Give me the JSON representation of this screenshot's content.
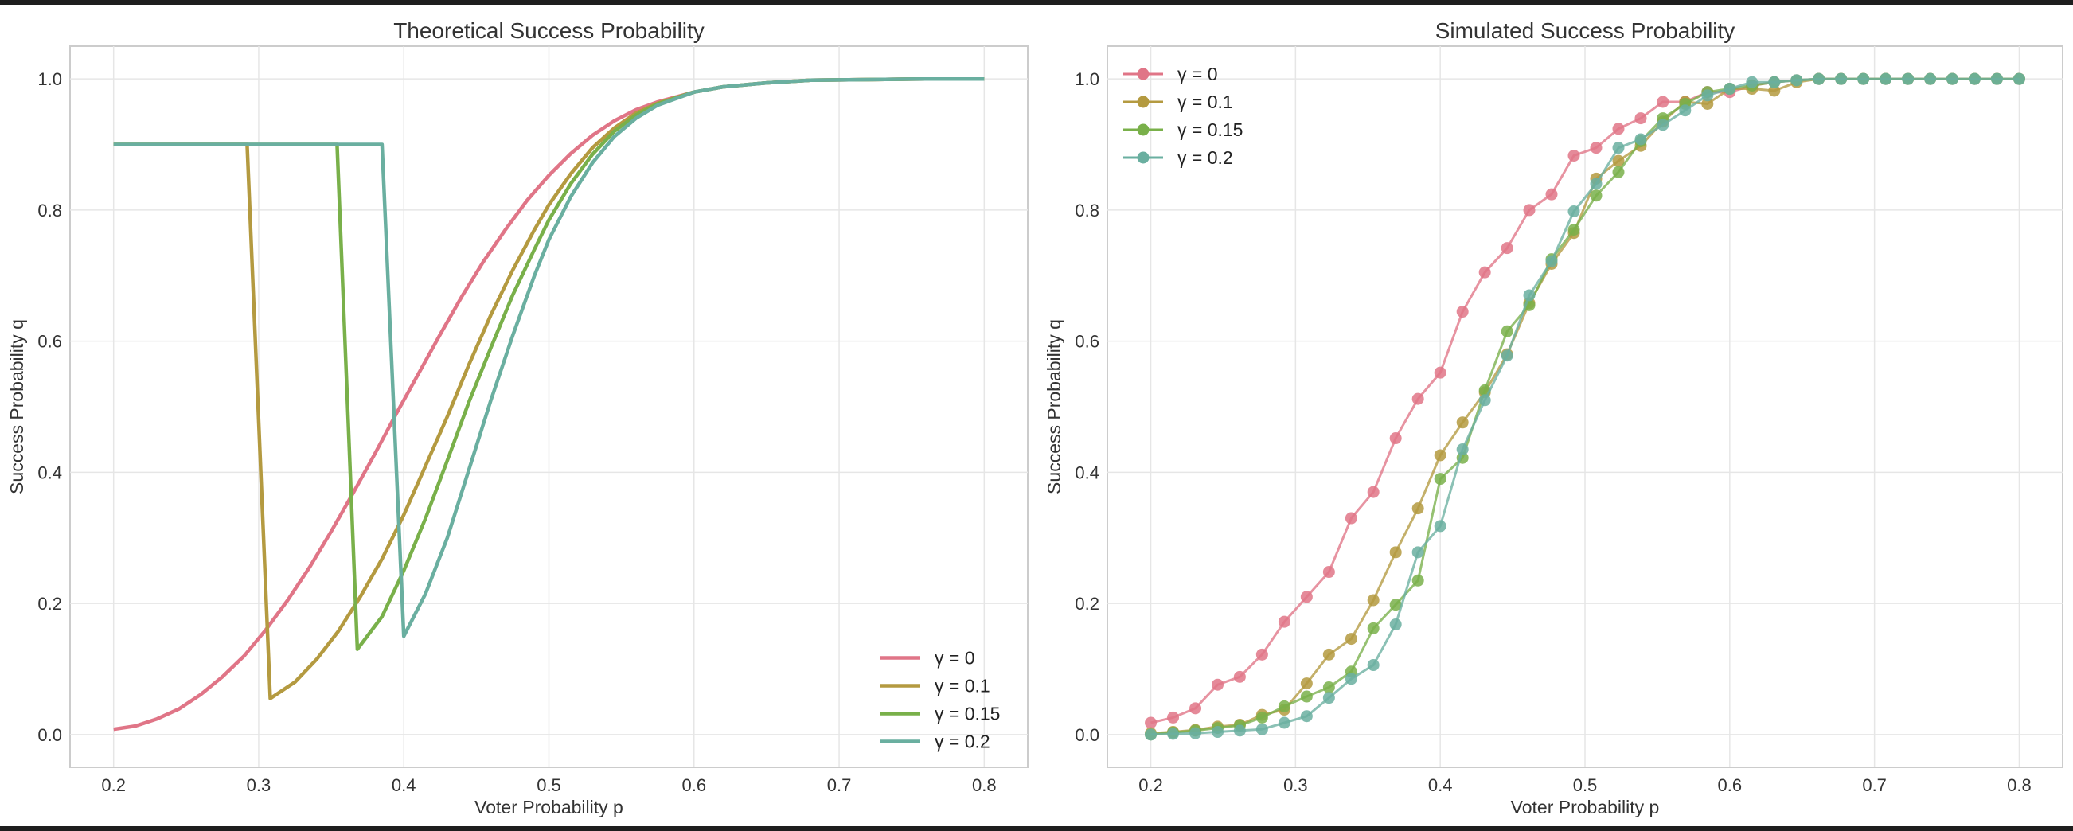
{
  "chart_data": [
    {
      "type": "line",
      "title": "Theoretical Success Probability",
      "xlabel": "Voter Probability p",
      "ylabel": "Success Probability q",
      "xlim": [
        0.17,
        0.83
      ],
      "ylim": [
        -0.05,
        1.05
      ],
      "xticks": [
        "0.2",
        "0.3",
        "0.4",
        "0.5",
        "0.6",
        "0.7",
        "0.8"
      ],
      "yticks": [
        "0.0",
        "0.2",
        "0.4",
        "0.6",
        "0.8",
        "1.0"
      ],
      "grid": true,
      "legend": "lower-right",
      "series": [
        {
          "name": "γ = 0",
          "color": "#E07587",
          "x": [
            0.2,
            0.215,
            0.23,
            0.245,
            0.26,
            0.275,
            0.29,
            0.305,
            0.32,
            0.335,
            0.35,
            0.365,
            0.38,
            0.395,
            0.41,
            0.425,
            0.44,
            0.455,
            0.47,
            0.485,
            0.5,
            0.515,
            0.53,
            0.545,
            0.56,
            0.575,
            0.6,
            0.62,
            0.65,
            0.68,
            0.72,
            0.76,
            0.8
          ],
          "y": [
            0.008,
            0.013,
            0.024,
            0.039,
            0.061,
            0.088,
            0.12,
            0.16,
            0.205,
            0.255,
            0.31,
            0.368,
            0.428,
            0.49,
            0.55,
            0.61,
            0.668,
            0.722,
            0.77,
            0.815,
            0.853,
            0.886,
            0.914,
            0.936,
            0.953,
            0.965,
            0.98,
            0.988,
            0.994,
            0.998,
            0.999,
            1.0,
            1.0
          ]
        },
        {
          "name": "γ = 0.1",
          "color": "#B49A40",
          "x": [
            0.2,
            0.292,
            0.308,
            0.325,
            0.34,
            0.355,
            0.37,
            0.385,
            0.4,
            0.415,
            0.43,
            0.445,
            0.46,
            0.475,
            0.49,
            0.5,
            0.515,
            0.53,
            0.545,
            0.56,
            0.575,
            0.6,
            0.62,
            0.65,
            0.68,
            0.72,
            0.76,
            0.8
          ],
          "y": [
            0.9,
            0.9,
            0.055,
            0.08,
            0.115,
            0.158,
            0.21,
            0.268,
            0.335,
            0.41,
            0.485,
            0.565,
            0.64,
            0.708,
            0.77,
            0.808,
            0.855,
            0.895,
            0.925,
            0.948,
            0.963,
            0.98,
            0.988,
            0.994,
            0.998,
            0.999,
            1.0,
            1.0
          ]
        },
        {
          "name": "γ = 0.15",
          "color": "#79B04A",
          "x": [
            0.2,
            0.354,
            0.368,
            0.385,
            0.4,
            0.415,
            0.43,
            0.445,
            0.46,
            0.475,
            0.49,
            0.5,
            0.515,
            0.53,
            0.545,
            0.56,
            0.575,
            0.6,
            0.62,
            0.65,
            0.68,
            0.72,
            0.76,
            0.8
          ],
          "y": [
            0.9,
            0.9,
            0.13,
            0.18,
            0.25,
            0.33,
            0.418,
            0.508,
            0.59,
            0.67,
            0.74,
            0.785,
            0.84,
            0.885,
            0.92,
            0.945,
            0.962,
            0.98,
            0.988,
            0.994,
            0.998,
            0.999,
            1.0,
            1.0
          ]
        },
        {
          "name": "γ = 0.2",
          "color": "#6AAFA0",
          "x": [
            0.2,
            0.385,
            0.4,
            0.415,
            0.43,
            0.445,
            0.46,
            0.475,
            0.49,
            0.5,
            0.515,
            0.53,
            0.545,
            0.56,
            0.575,
            0.6,
            0.62,
            0.65,
            0.68,
            0.72,
            0.76,
            0.8
          ],
          "y": [
            0.9,
            0.9,
            0.15,
            0.215,
            0.3,
            0.405,
            0.51,
            0.608,
            0.7,
            0.755,
            0.82,
            0.872,
            0.912,
            0.94,
            0.96,
            0.98,
            0.988,
            0.994,
            0.998,
            0.999,
            1.0,
            1.0
          ]
        }
      ]
    },
    {
      "type": "line",
      "title": "Simulated Success Probability",
      "xlabel": "Voter Probability p",
      "ylabel": "Success Probability q",
      "xlim": [
        0.17,
        0.83
      ],
      "ylim": [
        -0.05,
        1.05
      ],
      "xticks": [
        "0.2",
        "0.3",
        "0.4",
        "0.5",
        "0.6",
        "0.7",
        "0.8"
      ],
      "yticks": [
        "0.0",
        "0.2",
        "0.4",
        "0.6",
        "0.8",
        "1.0"
      ],
      "grid": true,
      "legend": "upper-left",
      "markers": true,
      "x": [
        0.2,
        0.2154,
        0.2308,
        0.2462,
        0.2615,
        0.2769,
        0.2923,
        0.3077,
        0.3231,
        0.3385,
        0.3538,
        0.3692,
        0.3846,
        0.4,
        0.4154,
        0.4308,
        0.4462,
        0.4615,
        0.4769,
        0.4923,
        0.5077,
        0.5231,
        0.5385,
        0.5538,
        0.5692,
        0.5846,
        0.6,
        0.6154,
        0.6308,
        0.6462,
        0.6615,
        0.6769,
        0.6923,
        0.7077,
        0.7231,
        0.7385,
        0.7538,
        0.7692,
        0.7846,
        0.8
      ],
      "series": [
        {
          "name": "γ = 0",
          "color": "#E07587",
          "values": [
            0.018,
            0.026,
            0.04,
            0.076,
            0.088,
            0.122,
            0.172,
            0.21,
            0.248,
            0.33,
            0.37,
            0.452,
            0.512,
            0.552,
            0.645,
            0.705,
            0.742,
            0.8,
            0.824,
            0.883,
            0.895,
            0.924,
            0.94,
            0.965,
            0.965,
            0.98,
            0.98,
            0.99,
            0.995,
            0.998,
            1.0,
            1.0,
            1.0,
            1.0,
            1.0,
            1.0,
            1.0,
            1.0,
            1.0,
            1.0
          ]
        },
        {
          "name": "γ = 0.1",
          "color": "#B49A40",
          "values": [
            0.002,
            0.004,
            0.007,
            0.012,
            0.015,
            0.03,
            0.038,
            0.078,
            0.122,
            0.146,
            0.205,
            0.278,
            0.345,
            0.426,
            0.476,
            0.522,
            0.58,
            0.658,
            0.718,
            0.765,
            0.848,
            0.875,
            0.898,
            0.935,
            0.965,
            0.962,
            0.985,
            0.985,
            0.982,
            0.995,
            1.0,
            1.0,
            1.0,
            1.0,
            1.0,
            1.0,
            1.0,
            1.0,
            1.0,
            1.0
          ]
        },
        {
          "name": "γ = 0.15",
          "color": "#79B04A",
          "values": [
            0.0,
            0.003,
            0.006,
            0.01,
            0.014,
            0.026,
            0.043,
            0.058,
            0.072,
            0.096,
            0.162,
            0.198,
            0.235,
            0.39,
            0.422,
            0.525,
            0.615,
            0.655,
            0.725,
            0.77,
            0.822,
            0.858,
            0.905,
            0.94,
            0.962,
            0.98,
            0.985,
            0.99,
            0.995,
            0.998,
            1.0,
            1.0,
            1.0,
            1.0,
            1.0,
            1.0,
            1.0,
            1.0,
            1.0,
            1.0
          ]
        },
        {
          "name": "γ = 0.2",
          "color": "#6AAFA0",
          "values": [
            0.0,
            0.001,
            0.002,
            0.004,
            0.006,
            0.008,
            0.018,
            0.028,
            0.056,
            0.085,
            0.106,
            0.168,
            0.278,
            0.318,
            0.435,
            0.51,
            0.578,
            0.67,
            0.722,
            0.798,
            0.84,
            0.895,
            0.908,
            0.93,
            0.952,
            0.975,
            0.985,
            0.995,
            0.995,
            0.998,
            1.0,
            1.0,
            1.0,
            1.0,
            1.0,
            1.0,
            1.0,
            1.0,
            1.0,
            1.0
          ]
        }
      ]
    }
  ]
}
